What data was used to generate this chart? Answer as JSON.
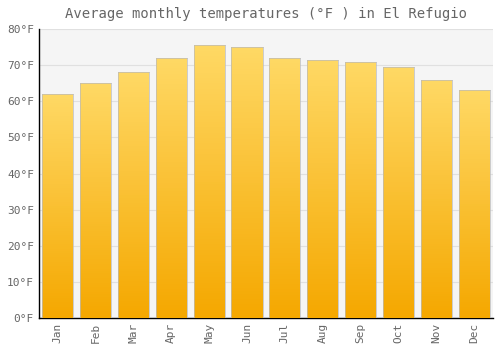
{
  "title": "Average monthly temperatures (°F ) in El Refugio",
  "months": [
    "Jan",
    "Feb",
    "Mar",
    "Apr",
    "May",
    "Jun",
    "Jul",
    "Aug",
    "Sep",
    "Oct",
    "Nov",
    "Dec"
  ],
  "values": [
    62,
    65,
    68,
    72,
    75.5,
    75,
    72,
    71.5,
    71,
    69.5,
    66,
    63
  ],
  "bar_color_bottom": "#F5A800",
  "bar_color_top": "#FFD966",
  "bar_edge_color": "#CCCCCC",
  "background_color": "#FFFFFF",
  "plot_bg_color": "#F5F5F5",
  "grid_color": "#E0E0E0",
  "ylim": [
    0,
    80
  ],
  "yticks": [
    0,
    10,
    20,
    30,
    40,
    50,
    60,
    70,
    80
  ],
  "ytick_labels": [
    "0°F",
    "10°F",
    "20°F",
    "30°F",
    "40°F",
    "50°F",
    "60°F",
    "70°F",
    "80°F"
  ],
  "title_fontsize": 10,
  "tick_fontsize": 8,
  "font_color": "#666666",
  "spine_color": "#000000"
}
